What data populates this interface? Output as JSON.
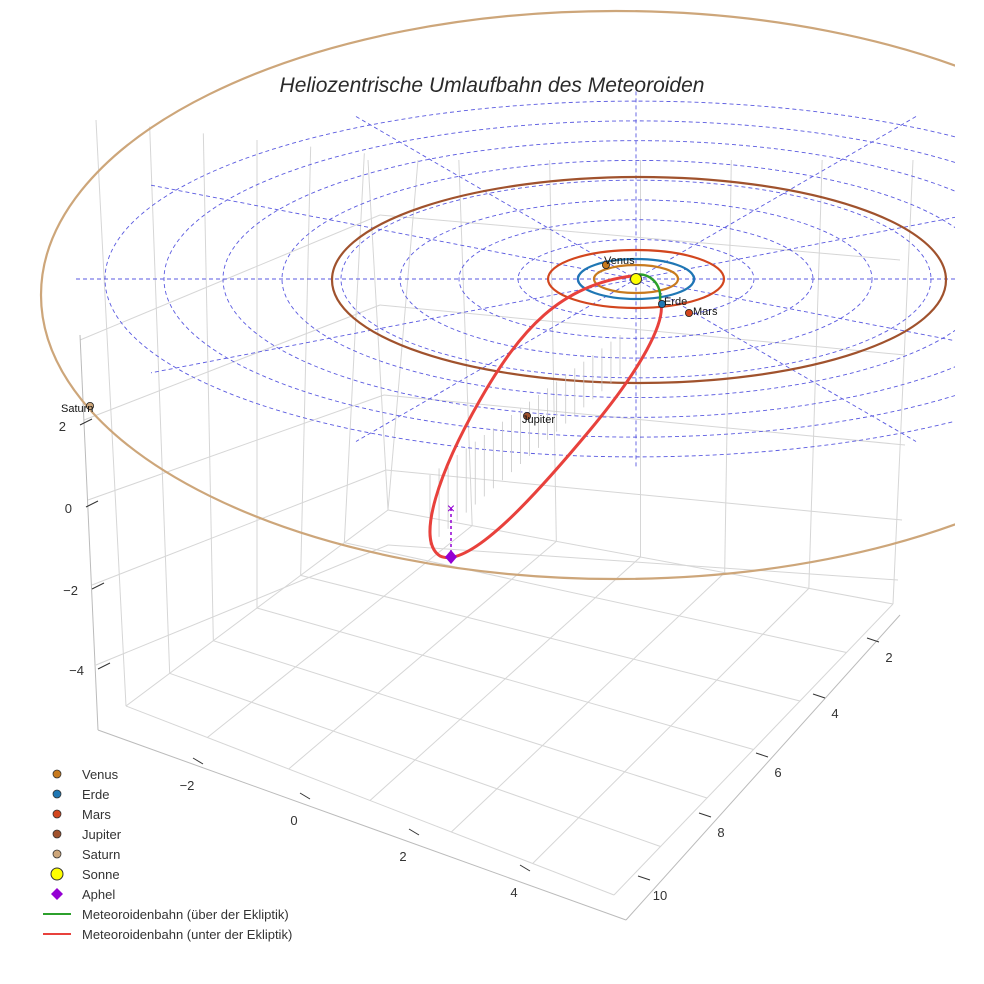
{
  "chart_data": {
    "type": "scatter",
    "title": "Heliozentrische Umlaufbahn des Meteoroiden",
    "axes": {
      "x": {
        "ticks": [
          -2,
          0,
          2,
          4
        ],
        "range": [
          -3,
          5
        ]
      },
      "y": {
        "ticks": [
          2,
          4,
          6,
          8,
          10
        ],
        "range": [
          0,
          11
        ]
      },
      "z": {
        "ticks": [
          2,
          0,
          -2,
          -4
        ],
        "range": [
          -5,
          3
        ]
      }
    },
    "planets": [
      {
        "name": "Venus",
        "orbit_radius": 0.72,
        "color": "#c87a1e",
        "label": "Venus"
      },
      {
        "name": "Erde",
        "orbit_radius": 1.0,
        "color": "#1f77b4",
        "label": "Erde"
      },
      {
        "name": "Mars",
        "orbit_radius": 1.52,
        "color": "#d2461e",
        "label": "Mars"
      },
      {
        "name": "Jupiter",
        "orbit_radius": 5.2,
        "color": "#a0522d",
        "label": "Jupiter"
      },
      {
        "name": "Saturn",
        "orbit_radius": 9.5,
        "color": "#cda67a",
        "label": "Saturn"
      }
    ],
    "sun": {
      "name": "Sonne",
      "color": "#ffff00"
    },
    "aphel": {
      "name": "Aphel",
      "color": "#9400d3"
    },
    "meteoroid_orbit": {
      "above": {
        "name": "Meteoroidenbahn (über der Ekliptik)",
        "color": "#2ca02c"
      },
      "below": {
        "name": "Meteoroidenbahn (unter der Ekliptik)",
        "color": "#e8413c"
      }
    },
    "legend": [
      {
        "label": "Venus",
        "symbol": "circle",
        "color": "#c87a1e"
      },
      {
        "label": "Erde",
        "symbol": "circle",
        "color": "#1f77b4"
      },
      {
        "label": "Mars",
        "symbol": "circle",
        "color": "#d2461e"
      },
      {
        "label": "Jupiter",
        "symbol": "circle",
        "color": "#a0522d"
      },
      {
        "label": "Saturn",
        "symbol": "circle",
        "color": "#cda67a"
      },
      {
        "label": "Sonne",
        "symbol": "circle-lg",
        "color": "#ffff00"
      },
      {
        "label": "Aphel",
        "symbol": "diamond",
        "color": "#9400d3"
      },
      {
        "label": "Meteoroidenbahn (über der Ekliptik)",
        "symbol": "line",
        "color": "#2ca02c"
      },
      {
        "label": "Meteoroidenbahn (unter der Ekliptik)",
        "symbol": "line",
        "color": "#e8413c"
      }
    ],
    "legend_position": "bottom-left",
    "grid": true
  }
}
